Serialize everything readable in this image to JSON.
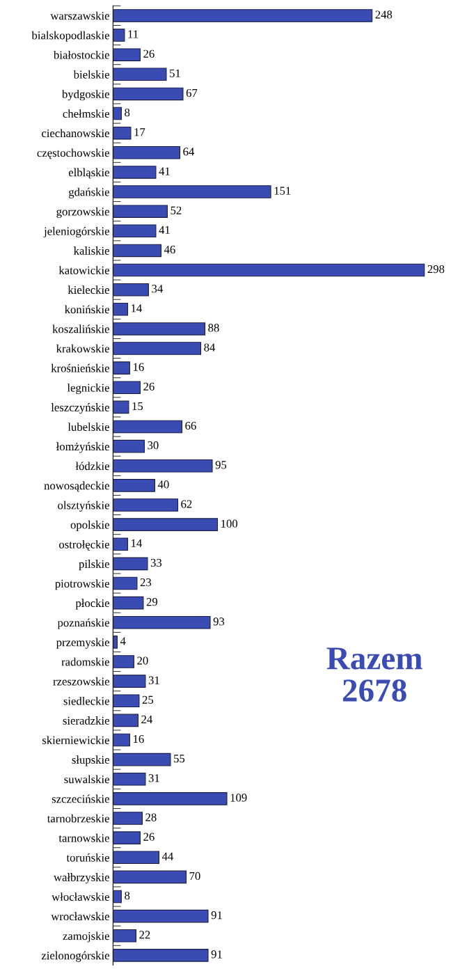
{
  "chart_data": {
    "type": "bar",
    "orientation": "horizontal",
    "categories": [
      "warszawskie",
      "bialskopodlaskie",
      "białostockie",
      "bielskie",
      "bydgoskie",
      "chełmskie",
      "ciechanowskie",
      "częstochowskie",
      "elbląskie",
      "gdańskie",
      "gorzowskie",
      "jeleniogórskie",
      "kaliskie",
      "katowickie",
      "kieleckie",
      "konińskie",
      "koszalińskie",
      "krakowskie",
      "krośnieńskie",
      "legnickie",
      "leszczyńskie",
      "lubelskie",
      "łomżyńskie",
      "łódzkie",
      "nowosądeckie",
      "olsztyńskie",
      "opolskie",
      "ostrołęckie",
      "pilskie",
      "piotrowskie",
      "płockie",
      "poznańskie",
      "przemyskie",
      "radomskie",
      "rzeszowskie",
      "siedleckie",
      "sieradzkie",
      "skierniewickie",
      "słupskie",
      "suwalskie",
      "szczecińskie",
      "tarnobrzeskie",
      "tarnowskie",
      "toruńskie",
      "wałbrzyskie",
      "włocławskie",
      "wrocławskie",
      "zamojskie",
      "zielonogórskie"
    ],
    "values": [
      248,
      11,
      26,
      51,
      67,
      8,
      17,
      64,
      41,
      151,
      52,
      41,
      46,
      298,
      34,
      14,
      88,
      84,
      16,
      26,
      15,
      66,
      30,
      95,
      40,
      62,
      100,
      14,
      33,
      23,
      29,
      93,
      4,
      20,
      31,
      25,
      24,
      16,
      55,
      31,
      109,
      28,
      26,
      44,
      70,
      8,
      91,
      22,
      91
    ],
    "color": "#3a4cb4",
    "data_labels": true,
    "tick_labels": "y",
    "grid": false,
    "legend": false,
    "annotations": [
      "Razem\n2678"
    ]
  }
}
